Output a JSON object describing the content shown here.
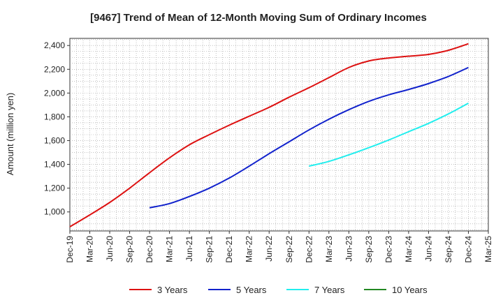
{
  "chart_data": {
    "type": "line",
    "title": "[9467]  Trend of Mean of 12-Month Moving Sum of Ordinary Incomes",
    "ylabel": "Amount (million yen)",
    "xlabel": "",
    "x_ticks": [
      "Dec-19",
      "Mar-20",
      "Jun-20",
      "Sep-20",
      "Dec-20",
      "Mar-21",
      "Jun-21",
      "Sep-21",
      "Dec-21",
      "Mar-22",
      "Jun-22",
      "Sep-22",
      "Dec-22",
      "Mar-23",
      "Jun-23",
      "Sep-23",
      "Dec-23",
      "Mar-24",
      "Jun-24",
      "Sep-24",
      "Dec-24",
      "Mar-25"
    ],
    "y_ticks": [
      "1,000",
      "1,200",
      "1,400",
      "1,600",
      "1,800",
      "2,000",
      "2,200",
      "2,400"
    ],
    "ylim": [
      840,
      2460
    ],
    "grid": true,
    "legend_position": "bottom",
    "series": [
      {
        "name": "3 Years",
        "color": "#dd1111",
        "points": [
          [
            "Dec-19",
            875
          ],
          [
            "Mar-20",
            975
          ],
          [
            "Jun-20",
            1080
          ],
          [
            "Sep-20",
            1200
          ],
          [
            "Dec-20",
            1330
          ],
          [
            "Mar-21",
            1455
          ],
          [
            "Jun-21",
            1565
          ],
          [
            "Sep-21",
            1650
          ],
          [
            "Dec-21",
            1730
          ],
          [
            "Mar-22",
            1805
          ],
          [
            "Jun-22",
            1880
          ],
          [
            "Sep-22",
            1965
          ],
          [
            "Dec-22",
            2045
          ],
          [
            "Mar-23",
            2130
          ],
          [
            "Jun-23",
            2215
          ],
          [
            "Sep-23",
            2270
          ],
          [
            "Dec-23",
            2295
          ],
          [
            "Mar-24",
            2310
          ],
          [
            "Jun-24",
            2325
          ],
          [
            "Sep-24",
            2360
          ],
          [
            "Dec-24",
            2415
          ]
        ]
      },
      {
        "name": "5 Years",
        "color": "#1122cc",
        "points": [
          [
            "Dec-20",
            1035
          ],
          [
            "Mar-21",
            1070
          ],
          [
            "Jun-21",
            1130
          ],
          [
            "Sep-21",
            1200
          ],
          [
            "Dec-21",
            1285
          ],
          [
            "Mar-22",
            1385
          ],
          [
            "Jun-22",
            1490
          ],
          [
            "Sep-22",
            1590
          ],
          [
            "Dec-22",
            1690
          ],
          [
            "Mar-23",
            1780
          ],
          [
            "Jun-23",
            1860
          ],
          [
            "Sep-23",
            1930
          ],
          [
            "Dec-23",
            1985
          ],
          [
            "Mar-24",
            2030
          ],
          [
            "Jun-24",
            2080
          ],
          [
            "Sep-24",
            2140
          ],
          [
            "Dec-24",
            2215
          ]
        ]
      },
      {
        "name": "7 Years",
        "color": "#22eeee",
        "points": [
          [
            "Dec-22",
            1385
          ],
          [
            "Mar-23",
            1425
          ],
          [
            "Jun-23",
            1480
          ],
          [
            "Sep-23",
            1540
          ],
          [
            "Dec-23",
            1605
          ],
          [
            "Mar-24",
            1675
          ],
          [
            "Jun-24",
            1745
          ],
          [
            "Sep-24",
            1825
          ],
          [
            "Dec-24",
            1915
          ]
        ]
      },
      {
        "name": "10 Years",
        "color": "#228822",
        "points": []
      }
    ]
  }
}
